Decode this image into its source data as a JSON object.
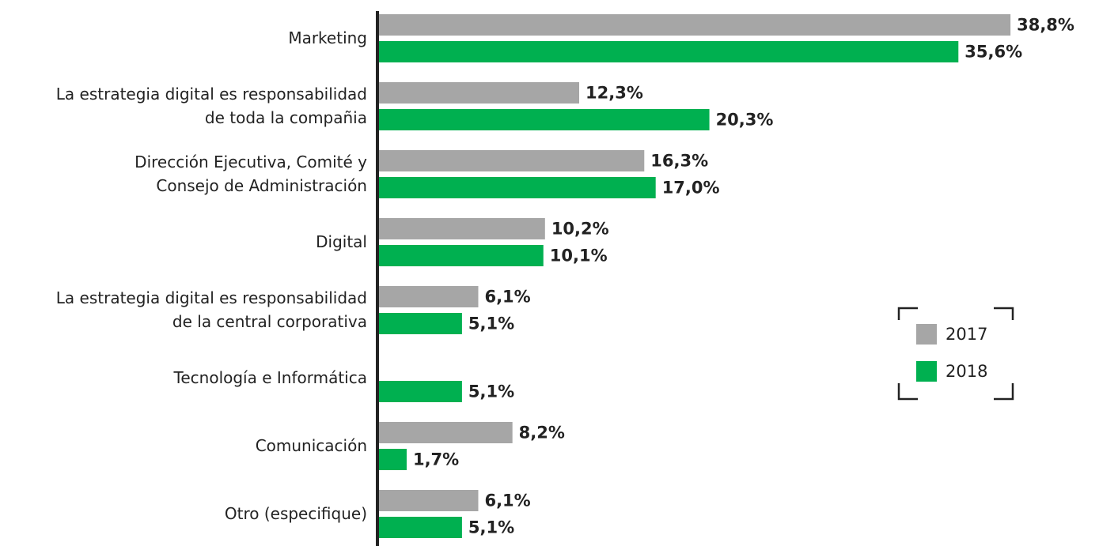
{
  "chart_data": {
    "type": "bar",
    "orientation": "horizontal",
    "categories": [
      "Marketing",
      "La estrategia digital es responsabilidad\nde toda la compañia",
      "Dirección Ejecutiva, Comité y\nConsejo de Administración",
      "Digital",
      "La estrategia digital es responsabilidad\nde la central corporativa",
      "Tecnología e Informática",
      "Comunicación",
      "Otro (especifique)"
    ],
    "series": [
      {
        "name": "2017",
        "color": "#a6a6a6",
        "values": [
          38.8,
          12.3,
          16.3,
          10.2,
          6.1,
          null,
          8.2,
          6.1
        ],
        "value_labels": [
          "38,8%",
          "12,3%",
          "16,3%",
          "10,2%",
          "6,1%",
          null,
          "8,2%",
          "6,1%"
        ]
      },
      {
        "name": "2018",
        "color": "#00b050",
        "values": [
          35.6,
          20.3,
          17.0,
          10.1,
          5.1,
          5.1,
          1.7,
          5.1
        ],
        "value_labels": [
          "35,6%",
          "20,3%",
          "17,0%",
          "10,1%",
          "5,1%",
          "5,1%",
          "1,7%",
          "5,1%"
        ]
      }
    ]
  }
}
